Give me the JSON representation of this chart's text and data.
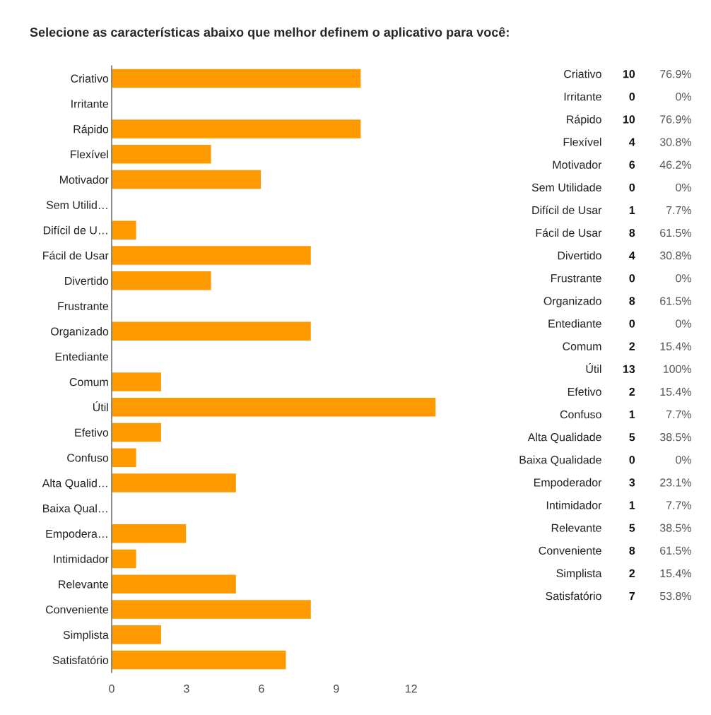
{
  "chart_data": [
    {
      "type": "bar",
      "orientation": "horizontal",
      "title": "Selecione as características abaixo que melhor definem o aplicativo para você:",
      "categories": [
        "Criativo",
        "Irritante",
        "Rápido",
        "Flexível",
        "Motivador",
        "Sem Utilid…",
        "Difícil de U…",
        "Fácil de Usar",
        "Divertido",
        "Frustrante",
        "Organizado",
        "Entediante",
        "Comum",
        "Útil",
        "Efetivo",
        "Confuso",
        "Alta Qualid…",
        "Baixa Qual…",
        "Empodera…",
        "Intimidador",
        "Relevante",
        "Conveniente",
        "Simplista",
        "Satisfatório"
      ],
      "values": [
        10,
        0,
        10,
        4,
        6,
        0,
        1,
        8,
        4,
        0,
        8,
        0,
        2,
        13,
        2,
        1,
        5,
        0,
        3,
        1,
        5,
        8,
        2,
        7
      ],
      "color": "#ff9900",
      "xlim": [
        0,
        13
      ],
      "xticks": [
        0,
        3,
        6,
        9,
        12
      ],
      "grid": false,
      "legend": false
    },
    {
      "type": "other",
      "data_labels": true,
      "categories": [
        "Criativo",
        "Irritante",
        "Rápido",
        "Flexível",
        "Motivador",
        "Sem Utilidade",
        "Difícil de Usar",
        "Fácil de Usar",
        "Divertido",
        "Frustrante",
        "Organizado",
        "Entediante",
        "Comum",
        "Útil",
        "Efetivo",
        "Confuso",
        "Alta Qualidade",
        "Baixa Qualidade",
        "Empoderador",
        "Intimidador",
        "Relevante",
        "Conveniente",
        "Simplista",
        "Satisfatório"
      ],
      "series": [
        {
          "values": [
            10,
            0,
            10,
            4,
            6,
            0,
            1,
            8,
            4,
            0,
            8,
            0,
            2,
            13,
            2,
            1,
            5,
            0,
            3,
            1,
            5,
            8,
            2,
            7
          ]
        },
        {
          "values": [
            76.9,
            0,
            76.9,
            30.8,
            46.2,
            0,
            7.7,
            61.5,
            30.8,
            0,
            61.5,
            0,
            15.4,
            100,
            15.4,
            7.7,
            38.5,
            0,
            23.1,
            7.7,
            38.5,
            61.5,
            15.4,
            53.8
          ],
          "value_labels": [
            "76.9%",
            "0%",
            "76.9%",
            "30.8%",
            "46.2%",
            "0%",
            "7.7%",
            "61.5%",
            "30.8%",
            "0%",
            "61.5%",
            "0%",
            "15.4%",
            "100%",
            "15.4%",
            "7.7%",
            "38.5%",
            "0%",
            "23.1%",
            "7.7%",
            "38.5%",
            "61.5%",
            "15.4%",
            "53.8%"
          ]
        }
      ]
    }
  ]
}
